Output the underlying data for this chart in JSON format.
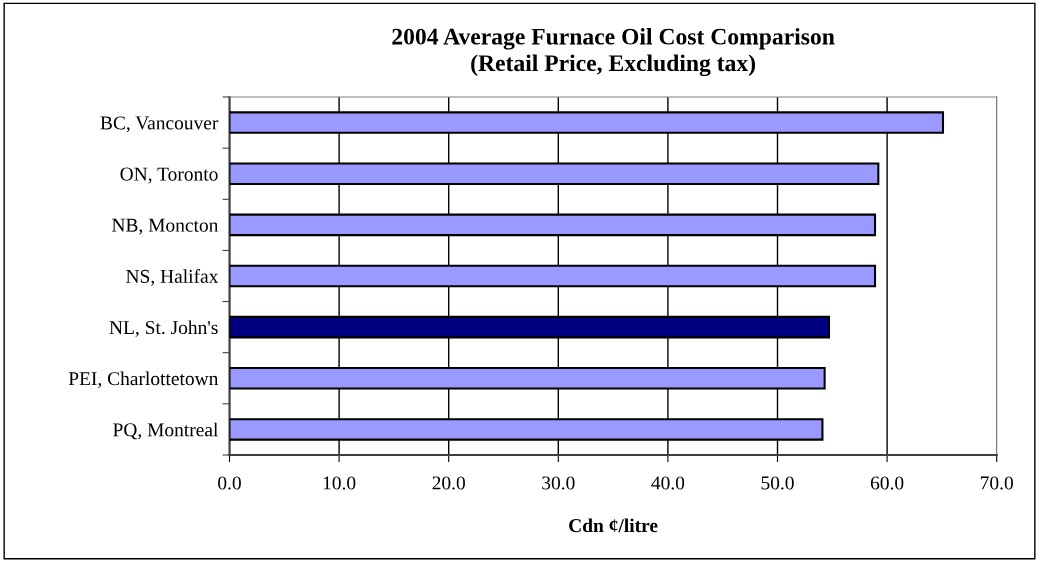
{
  "chart_data": {
    "type": "bar",
    "orientation": "horizontal",
    "title": "2004 Average Furnace Oil Cost Comparison\n(Retail Price, Excluding tax)",
    "xlabel": "Cdn ¢/litre",
    "categories": [
      "BC, Vancouver",
      "ON, Toronto",
      "NB, Moncton",
      "NS, Halifax",
      "NL, St. John's",
      "PEI, Charlottetown",
      "PQ, Montreal"
    ],
    "values": [
      65.1,
      59.2,
      58.9,
      58.9,
      54.7,
      54.3,
      54.1
    ],
    "colors": [
      "#9999ff",
      "#9999ff",
      "#9999ff",
      "#9999ff",
      "#000080",
      "#9999ff",
      "#9999ff"
    ],
    "xlim": [
      0,
      70
    ],
    "xticks": [
      {
        "value": 0,
        "label": "0.0"
      },
      {
        "value": 10,
        "label": "10.0"
      },
      {
        "value": 20,
        "label": "20.0"
      },
      {
        "value": 30,
        "label": "30.0"
      },
      {
        "value": 40,
        "label": "40.0"
      },
      {
        "value": 50,
        "label": "50.0"
      },
      {
        "value": 60,
        "label": "60.0"
      },
      {
        "value": 70,
        "label": "70.0"
      }
    ],
    "grid": "x"
  }
}
